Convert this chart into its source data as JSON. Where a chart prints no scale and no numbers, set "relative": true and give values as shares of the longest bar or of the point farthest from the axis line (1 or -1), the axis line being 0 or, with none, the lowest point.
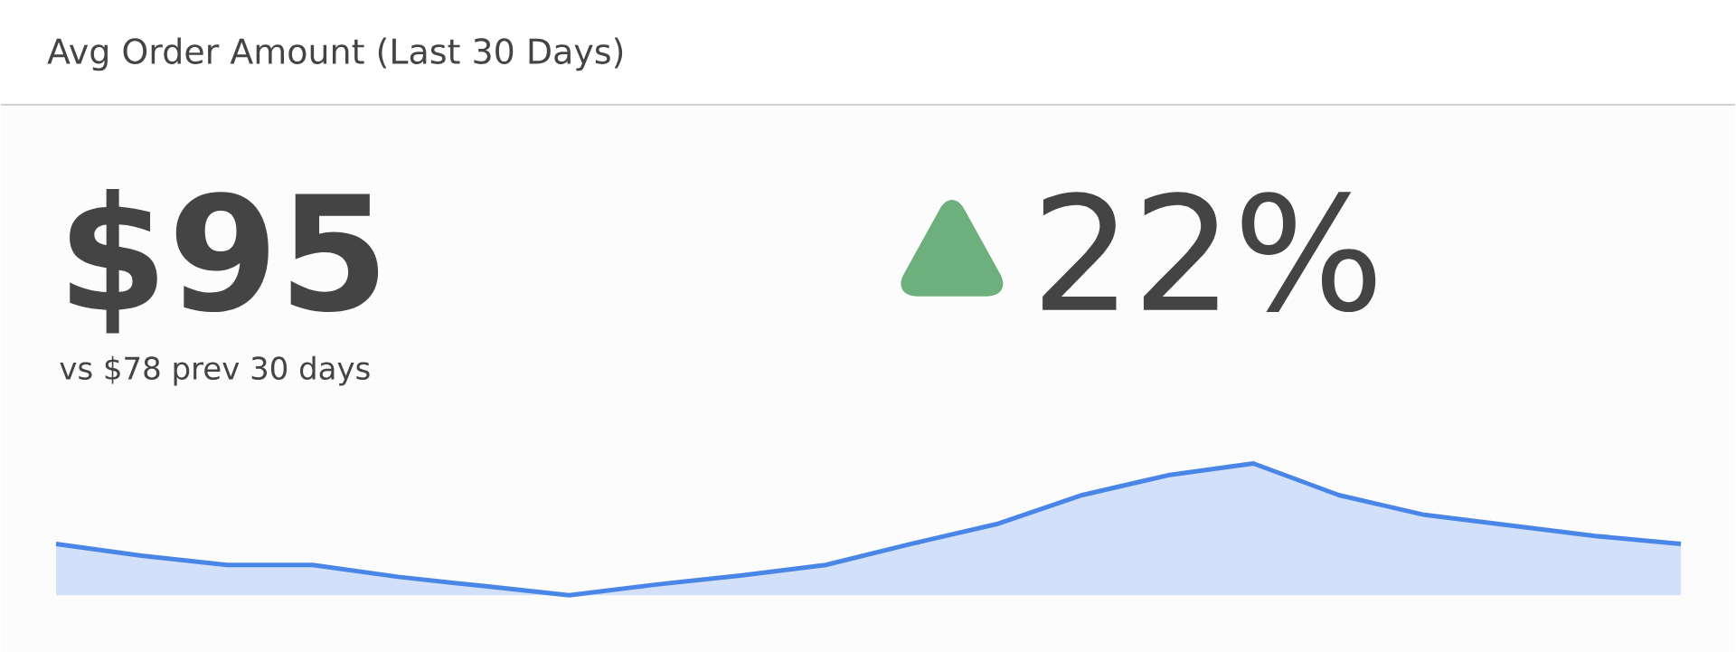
{
  "chart_data": {
    "type": "area",
    "title": "Avg Order Amount (Last 30 Days)",
    "relative": true,
    "annotations": [
      "$95",
      "vs $78 prev 30 days",
      "22%"
    ],
    "categories": [
      null,
      null,
      null,
      null,
      null,
      null,
      null,
      null,
      null,
      null,
      null,
      null,
      null,
      null,
      null,
      null,
      null,
      null,
      null,
      null
    ],
    "series": [
      {
        "color": "#4a86e8",
        "values": [
          0.39,
          0.3,
          0.23,
          0.23,
          0.14,
          0.07,
          0,
          0.08,
          0.15,
          0.23,
          0.39,
          0.54,
          0.76,
          0.91,
          1,
          0.76,
          0.61,
          0.53,
          0.45,
          0.39
        ]
      }
    ]
  }
}
